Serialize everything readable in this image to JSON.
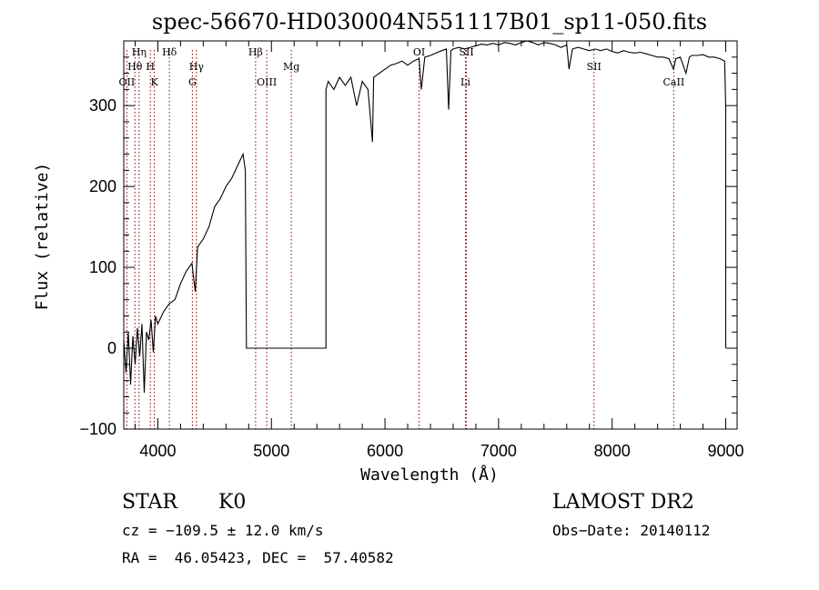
{
  "chart_data": {
    "type": "line",
    "title": "spec-56670-HD030004N551117B01_sp11-050.fits",
    "xlabel": "Wavelength (Å)",
    "ylabel": "Flux (relative)",
    "xlim": [
      3700,
      9100
    ],
    "ylim": [
      -100,
      380
    ],
    "xticks": [
      4000,
      5000,
      6000,
      7000,
      8000,
      9000
    ],
    "yticks": [
      -100,
      0,
      100,
      200,
      300
    ],
    "series": [
      {
        "name": "spectrum",
        "points": [
          [
            3700,
            10
          ],
          [
            3720,
            -30
          ],
          [
            3740,
            20
          ],
          [
            3760,
            -45
          ],
          [
            3780,
            15
          ],
          [
            3800,
            -20
          ],
          [
            3820,
            25
          ],
          [
            3840,
            -10
          ],
          [
            3860,
            30
          ],
          [
            3880,
            -55
          ],
          [
            3900,
            20
          ],
          [
            3920,
            10
          ],
          [
            3940,
            35
          ],
          [
            3960,
            -5
          ],
          [
            3980,
            40
          ],
          [
            4000,
            30
          ],
          [
            4050,
            45
          ],
          [
            4100,
            55
          ],
          [
            4150,
            60
          ],
          [
            4200,
            80
          ],
          [
            4250,
            95
          ],
          [
            4300,
            105
          ],
          [
            4330,
            70
          ],
          [
            4350,
            125
          ],
          [
            4400,
            135
          ],
          [
            4450,
            150
          ],
          [
            4500,
            175
          ],
          [
            4550,
            185
          ],
          [
            4600,
            200
          ],
          [
            4650,
            210
          ],
          [
            4700,
            225
          ],
          [
            4750,
            240
          ],
          [
            4770,
            220
          ],
          [
            4780,
            0
          ],
          [
            5480,
            0
          ],
          [
            5480,
            320
          ],
          [
            5500,
            330
          ],
          [
            5550,
            320
          ],
          [
            5600,
            335
          ],
          [
            5650,
            325
          ],
          [
            5700,
            335
          ],
          [
            5750,
            300
          ],
          [
            5800,
            330
          ],
          [
            5850,
            320
          ],
          [
            5890,
            255
          ],
          [
            5900,
            335
          ],
          [
            5950,
            340
          ],
          [
            6000,
            345
          ],
          [
            6050,
            350
          ],
          [
            6100,
            352
          ],
          [
            6150,
            355
          ],
          [
            6200,
            350
          ],
          [
            6250,
            355
          ],
          [
            6300,
            358
          ],
          [
            6320,
            320
          ],
          [
            6350,
            360
          ],
          [
            6400,
            362
          ],
          [
            6450,
            365
          ],
          [
            6500,
            368
          ],
          [
            6540,
            370
          ],
          [
            6560,
            295
          ],
          [
            6580,
            368
          ],
          [
            6600,
            370
          ],
          [
            6650,
            372
          ],
          [
            6700,
            370
          ],
          [
            6750,
            372
          ],
          [
            6800,
            374
          ],
          [
            6850,
            376
          ],
          [
            6900,
            375
          ],
          [
            6950,
            377
          ],
          [
            7000,
            375
          ],
          [
            7050,
            378
          ],
          [
            7100,
            377
          ],
          [
            7150,
            375
          ],
          [
            7200,
            378
          ],
          [
            7250,
            380
          ],
          [
            7300,
            378
          ],
          [
            7350,
            375
          ],
          [
            7400,
            378
          ],
          [
            7450,
            377
          ],
          [
            7500,
            375
          ],
          [
            7550,
            372
          ],
          [
            7600,
            375
          ],
          [
            7620,
            345
          ],
          [
            7650,
            370
          ],
          [
            7700,
            372
          ],
          [
            7750,
            370
          ],
          [
            7800,
            368
          ],
          [
            7850,
            370
          ],
          [
            7900,
            368
          ],
          [
            7950,
            370
          ],
          [
            8000,
            367
          ],
          [
            8050,
            365
          ],
          [
            8100,
            368
          ],
          [
            8150,
            366
          ],
          [
            8200,
            365
          ],
          [
            8250,
            366
          ],
          [
            8300,
            364
          ],
          [
            8350,
            362
          ],
          [
            8400,
            360
          ],
          [
            8450,
            360
          ],
          [
            8500,
            358
          ],
          [
            8540,
            345
          ],
          [
            8560,
            358
          ],
          [
            8600,
            360
          ],
          [
            8650,
            340
          ],
          [
            8680,
            360
          ],
          [
            8700,
            362
          ],
          [
            8750,
            362
          ],
          [
            8800,
            363
          ],
          [
            8850,
            360
          ],
          [
            8900,
            360
          ],
          [
            8950,
            358
          ],
          [
            8990,
            355
          ],
          [
            9000,
            300
          ],
          [
            9000,
            0
          ]
        ]
      }
    ],
    "annotations": [
      {
        "label": "OII",
        "wavelength": 3727,
        "row": 3
      },
      {
        "label": "Hθ",
        "wavelength": 3798,
        "row": 2
      },
      {
        "label": "Hη",
        "wavelength": 3835,
        "row": 1
      },
      {
        "label": "H",
        "wavelength": 3934,
        "row": 2
      },
      {
        "label": "K",
        "wavelength": 3969,
        "row": 3
      },
      {
        "label": "Hδ",
        "wavelength": 4102,
        "row": 1
      },
      {
        "label": "G",
        "wavelength": 4304,
        "row": 3
      },
      {
        "label": "Hγ",
        "wavelength": 4340,
        "row": 2
      },
      {
        "label": "Hβ",
        "wavelength": 4861,
        "row": 1
      },
      {
        "label": "OIII",
        "wavelength": 4959,
        "row": 3
      },
      {
        "label": "Mg",
        "wavelength": 5175,
        "row": 2
      },
      {
        "label": "OI",
        "wavelength": 6300,
        "row": 1
      },
      {
        "label": "SII",
        "wavelength": 6717,
        "row": 1
      },
      {
        "label": "Li",
        "wavelength": 6708,
        "row": 3
      },
      {
        "label": "SII",
        "wavelength": 7840,
        "row": 2
      },
      {
        "label": "CaII",
        "wavelength": 8542,
        "row": 3
      }
    ]
  },
  "info": {
    "object_class": "STAR",
    "subclass": "K0",
    "survey": "LAMOST DR2",
    "velocity": "cz = −109.5 ± 12.0 km/s",
    "obs_date": "Obs−Date: 20140112",
    "coords": "RA =  46.05423, DEC =  57.40582"
  }
}
